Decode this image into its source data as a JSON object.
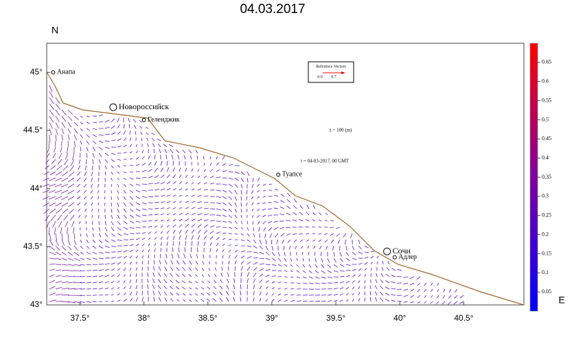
{
  "title": "04.03.2017",
  "axis_north": "N",
  "axis_east": "E",
  "xlim": [
    37.24,
    40.97
  ],
  "ylim": [
    43,
    45.25
  ],
  "xticks": [
    {
      "value": 37.5,
      "label": "37.5°"
    },
    {
      "value": 38,
      "label": "38°"
    },
    {
      "value": 38.5,
      "label": "38.5°"
    },
    {
      "value": 39,
      "label": "39°"
    },
    {
      "value": 39.5,
      "label": "39.5°"
    },
    {
      "value": 40,
      "label": "40°"
    },
    {
      "value": 40.5,
      "label": "40.5°"
    }
  ],
  "yticks": [
    {
      "value": 43,
      "label": "43°"
    },
    {
      "value": 43.5,
      "label": "43.5°"
    },
    {
      "value": 44,
      "label": "44°"
    },
    {
      "value": 44.5,
      "label": "44.5°"
    },
    {
      "value": 45,
      "label": "45°"
    }
  ],
  "cities": [
    {
      "name": "Анапа",
      "lon": 37.29,
      "lat": 45.0,
      "big": false
    },
    {
      "name": "Новороссийск",
      "lon": 37.76,
      "lat": 44.7,
      "big": true
    },
    {
      "name": "Геленджик",
      "lon": 38.0,
      "lat": 44.59,
      "big": false
    },
    {
      "name": "Туапсе",
      "lon": 39.05,
      "lat": 44.12,
      "big": false
    },
    {
      "name": "Сочи",
      "lon": 39.9,
      "lat": 43.46,
      "big": true
    },
    {
      "name": "Адлер",
      "lon": 39.96,
      "lat": 43.41,
      "big": false
    }
  ],
  "reference": {
    "title": "Reference Vectors",
    "labels": [
      "0.0",
      "0.7"
    ]
  },
  "annotations": [
    "z = 100 (m)",
    "t = 04-03-2017, 00 GMT"
  ],
  "colorbar": {
    "clim": [
      0,
      0.7
    ],
    "ticks": [
      0.05,
      0.1,
      0.15,
      0.2,
      0.25,
      0.3,
      0.35,
      0.4,
      0.45,
      0.5,
      0.55,
      0.6,
      0.65
    ]
  }
}
